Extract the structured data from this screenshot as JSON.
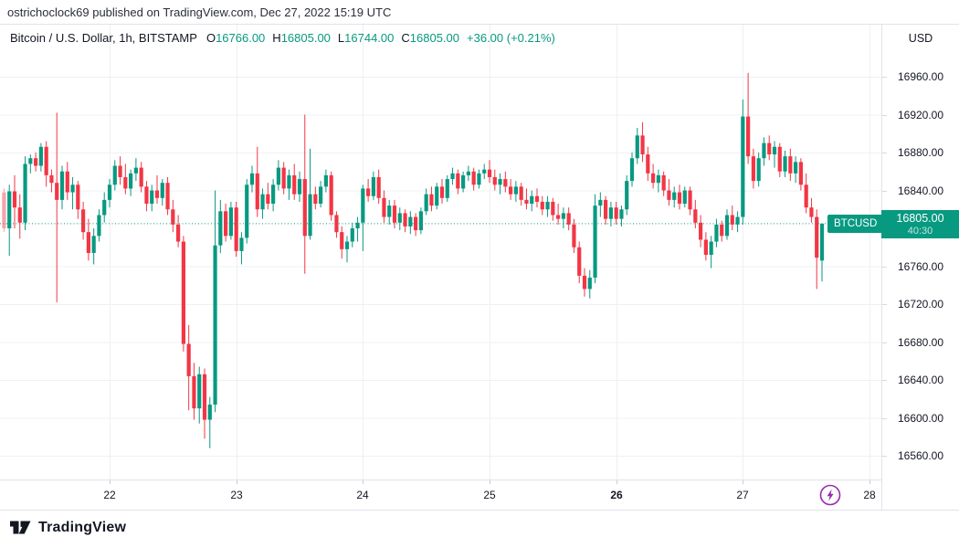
{
  "attribution": {
    "text": "ostrichoclock69 published on TradingView.com, Dec 27, 2022 15:19 UTC"
  },
  "header": {
    "symbol": "Bitcoin / U.S. Dollar, 1h, BITSTAMP",
    "ohlc_items": [
      {
        "label": "O",
        "value": "16766.00"
      },
      {
        "label": "H",
        "value": "16805.00"
      },
      {
        "label": "L",
        "value": "16744.00"
      },
      {
        "label": "C",
        "value": "16805.00"
      }
    ],
    "change": "+36.00 (+0.21%)",
    "currency_label": "USD"
  },
  "price_label": {
    "symbol": "BTCUSD",
    "price": "16805.00",
    "countdown": "40:30"
  },
  "footer": {
    "logo_text": "TradingView"
  },
  "colors": {
    "up": "#089981",
    "down": "#f23645",
    "badge": "#089981",
    "grid": "#eef0f4",
    "border": "#e0e3eb",
    "text": "#131722",
    "flash_purple": "#9c27b0",
    "logo_dark": "#131722"
  },
  "chart_data": {
    "type": "candlestick",
    "title": "Bitcoin / U.S. Dollar",
    "exchange": "BITSTAMP",
    "interval": "1h",
    "currency": "USD",
    "current_bar": {
      "open": 16766,
      "high": 16805,
      "low": 16744,
      "close": 16805,
      "change": 36.0,
      "change_pct": 0.21
    },
    "last_price": 16805,
    "countdown": "40:30",
    "y_axis": {
      "min": 16560,
      "max": 16960,
      "tick_step": 40,
      "ticks": [
        16960,
        16920,
        16880,
        16840,
        16760,
        16720,
        16680,
        16640,
        16600,
        16560
      ]
    },
    "x_axis": {
      "labels": [
        {
          "text": "22",
          "bold": false
        },
        {
          "text": "23",
          "bold": false
        },
        {
          "text": "24",
          "bold": false
        },
        {
          "text": "25",
          "bold": false
        },
        {
          "text": "26",
          "bold": true
        },
        {
          "text": "27",
          "bold": false
        },
        {
          "text": "28",
          "bold": false
        }
      ]
    },
    "candles": [
      [
        16838,
        16842,
        16796,
        16800
      ],
      [
        16800,
        16846,
        16771,
        16839
      ],
      [
        16839,
        16856,
        16800,
        16822
      ],
      [
        16822,
        16836,
        16789,
        16806
      ],
      [
        16806,
        16876,
        16798,
        16868
      ],
      [
        16868,
        16878,
        16858,
        16874
      ],
      [
        16874,
        16880,
        16860,
        16866
      ],
      [
        16866,
        16890,
        16860,
        16886
      ],
      [
        16886,
        16892,
        16844,
        16856
      ],
      [
        16856,
        16862,
        16838,
        16848
      ],
      [
        16848,
        16922,
        16722,
        16830
      ],
      [
        16830,
        16866,
        16820,
        16860
      ],
      [
        16860,
        16870,
        16830,
        16838
      ],
      [
        16838,
        16854,
        16820,
        16846
      ],
      [
        16846,
        16850,
        16810,
        16820
      ],
      [
        16820,
        16828,
        16788,
        16796
      ],
      [
        16796,
        16810,
        16766,
        16774
      ],
      [
        16774,
        16800,
        16762,
        16792
      ],
      [
        16792,
        16820,
        16786,
        16814
      ],
      [
        16814,
        16838,
        16806,
        16830
      ],
      [
        16830,
        16852,
        16822,
        16846
      ],
      [
        16846,
        16872,
        16840,
        16866
      ],
      [
        16866,
        16876,
        16846,
        16854
      ],
      [
        16854,
        16868,
        16836,
        16842
      ],
      [
        16842,
        16862,
        16834,
        16858
      ],
      [
        16858,
        16874,
        16850,
        16864
      ],
      [
        16864,
        16870,
        16838,
        16844
      ],
      [
        16844,
        16850,
        16818,
        16826
      ],
      [
        16826,
        16846,
        16818,
        16840
      ],
      [
        16840,
        16856,
        16826,
        16832
      ],
      [
        16832,
        16852,
        16824,
        16848
      ],
      [
        16848,
        16854,
        16814,
        16820
      ],
      [
        16820,
        16830,
        16796,
        16804
      ],
      [
        16804,
        16814,
        16780,
        16786
      ],
      [
        16786,
        16792,
        16670,
        16678
      ],
      [
        16678,
        16698,
        16608,
        16644
      ],
      [
        16644,
        16658,
        16598,
        16610
      ],
      [
        16610,
        16654,
        16594,
        16646
      ],
      [
        16646,
        16652,
        16578,
        16598
      ],
      [
        16598,
        16622,
        16568,
        16614
      ],
      [
        16614,
        16840,
        16606,
        16782
      ],
      [
        16782,
        16830,
        16774,
        16818
      ],
      [
        16818,
        16826,
        16786,
        16792
      ],
      [
        16792,
        16828,
        16788,
        16822
      ],
      [
        16822,
        16828,
        16770,
        16776
      ],
      [
        16776,
        16796,
        16762,
        16790
      ],
      [
        16790,
        16852,
        16784,
        16846
      ],
      [
        16846,
        16866,
        16838,
        16858
      ],
      [
        16858,
        16886,
        16812,
        16820
      ],
      [
        16820,
        16842,
        16810,
        16836
      ],
      [
        16836,
        16848,
        16820,
        16826
      ],
      [
        16826,
        16852,
        16818,
        16846
      ],
      [
        16846,
        16872,
        16840,
        16864
      ],
      [
        16864,
        16870,
        16836,
        16842
      ],
      [
        16842,
        16862,
        16830,
        16856
      ],
      [
        16856,
        16868,
        16830,
        16836
      ],
      [
        16836,
        16860,
        16828,
        16852
      ],
      [
        16852,
        16920,
        16752,
        16792
      ],
      [
        16792,
        16884,
        16788,
        16836
      ],
      [
        16836,
        16844,
        16820,
        16826
      ],
      [
        16826,
        16850,
        16822,
        16844
      ],
      [
        16844,
        16862,
        16838,
        16856
      ],
      [
        16856,
        16860,
        16808,
        16814
      ],
      [
        16814,
        16818,
        16790,
        16796
      ],
      [
        16796,
        16802,
        16768,
        16778
      ],
      [
        16778,
        16792,
        16764,
        16786
      ],
      [
        16786,
        16806,
        16780,
        16800
      ],
      [
        16800,
        16812,
        16786,
        16806
      ],
      [
        16806,
        16846,
        16776,
        16842
      ],
      [
        16842,
        16852,
        16828,
        16834
      ],
      [
        16834,
        16860,
        16830,
        16854
      ],
      [
        16854,
        16862,
        16826,
        16832
      ],
      [
        16832,
        16840,
        16806,
        16812
      ],
      [
        16812,
        16830,
        16804,
        16824
      ],
      [
        16824,
        16830,
        16800,
        16806
      ],
      [
        16806,
        16822,
        16798,
        16816
      ],
      [
        16816,
        16820,
        16796,
        16802
      ],
      [
        16802,
        16818,
        16794,
        16812
      ],
      [
        16812,
        16816,
        16792,
        16798
      ],
      [
        16798,
        16822,
        16794,
        16818
      ],
      [
        16818,
        16842,
        16814,
        16836
      ],
      [
        16836,
        16844,
        16818,
        16824
      ],
      [
        16824,
        16848,
        16820,
        16844
      ],
      [
        16844,
        16852,
        16826,
        16832
      ],
      [
        16832,
        16856,
        16828,
        16852
      ],
      [
        16852,
        16864,
        16846,
        16858
      ],
      [
        16858,
        16862,
        16836,
        16842
      ],
      [
        16842,
        16860,
        16838,
        16856
      ],
      [
        16856,
        16866,
        16850,
        16860
      ],
      [
        16860,
        16864,
        16840,
        16846
      ],
      [
        16846,
        16862,
        16842,
        16858
      ],
      [
        16858,
        16868,
        16852,
        16862
      ],
      [
        16862,
        16872,
        16848,
        16854
      ],
      [
        16854,
        16862,
        16840,
        16846
      ],
      [
        16846,
        16858,
        16836,
        16852
      ],
      [
        16852,
        16860,
        16838,
        16844
      ],
      [
        16844,
        16852,
        16830,
        16836
      ],
      [
        16836,
        16850,
        16828,
        16844
      ],
      [
        16844,
        16848,
        16824,
        16830
      ],
      [
        16830,
        16842,
        16820,
        16826
      ],
      [
        16826,
        16840,
        16818,
        16834
      ],
      [
        16834,
        16842,
        16822,
        16828
      ],
      [
        16828,
        16834,
        16814,
        16820
      ],
      [
        16820,
        16834,
        16812,
        16828
      ],
      [
        16828,
        16832,
        16808,
        16814
      ],
      [
        16814,
        16826,
        16804,
        16810
      ],
      [
        16810,
        16822,
        16800,
        16816
      ],
      [
        16816,
        16822,
        16798,
        16804
      ],
      [
        16804,
        16810,
        16774,
        16780
      ],
      [
        16780,
        16786,
        16742,
        16750
      ],
      [
        16750,
        16758,
        16728,
        16736
      ],
      [
        16736,
        16756,
        16726,
        16748
      ],
      [
        16748,
        16836,
        16742,
        16824
      ],
      [
        16824,
        16838,
        16812,
        16830
      ],
      [
        16830,
        16834,
        16804,
        16810
      ],
      [
        16810,
        16828,
        16802,
        16822
      ],
      [
        16822,
        16828,
        16804,
        16810
      ],
      [
        16810,
        16824,
        16802,
        16820
      ],
      [
        16820,
        16856,
        16814,
        16850
      ],
      [
        16850,
        16880,
        16844,
        16874
      ],
      [
        16874,
        16906,
        16868,
        16898
      ],
      [
        16898,
        16912,
        16870,
        16878
      ],
      [
        16878,
        16886,
        16850,
        16858
      ],
      [
        16858,
        16868,
        16842,
        16848
      ],
      [
        16848,
        16862,
        16838,
        16856
      ],
      [
        16856,
        16860,
        16834,
        16840
      ],
      [
        16840,
        16852,
        16824,
        16830
      ],
      [
        16830,
        16844,
        16822,
        16838
      ],
      [
        16838,
        16846,
        16820,
        16826
      ],
      [
        16826,
        16844,
        16822,
        16840
      ],
      [
        16840,
        16844,
        16814,
        16820
      ],
      [
        16820,
        16830,
        16800,
        16806
      ],
      [
        16806,
        16814,
        16780,
        16788
      ],
      [
        16788,
        16796,
        16766,
        16772
      ],
      [
        16772,
        16792,
        16758,
        16786
      ],
      [
        16786,
        16810,
        16780,
        16804
      ],
      [
        16804,
        16808,
        16786,
        16792
      ],
      [
        16792,
        16820,
        16788,
        16814
      ],
      [
        16814,
        16824,
        16798,
        16804
      ],
      [
        16804,
        16818,
        16796,
        16812
      ],
      [
        16812,
        16936,
        16804,
        16918
      ],
      [
        16918,
        16964,
        16868,
        16876
      ],
      [
        16876,
        16884,
        16842,
        16850
      ],
      [
        16850,
        16880,
        16844,
        16874
      ],
      [
        16874,
        16896,
        16866,
        16890
      ],
      [
        16890,
        16898,
        16872,
        16878
      ],
      [
        16878,
        16892,
        16864,
        16886
      ],
      [
        16886,
        16890,
        16854,
        16860
      ],
      [
        16860,
        16882,
        16854,
        16876
      ],
      [
        16876,
        16884,
        16850,
        16858
      ],
      [
        16858,
        16876,
        16848,
        16870
      ],
      [
        16870,
        16874,
        16840,
        16846
      ],
      [
        16846,
        16858,
        16816,
        16822
      ],
      [
        16822,
        16832,
        16806,
        16812
      ],
      [
        16812,
        16820,
        16736,
        16769
      ],
      [
        16766,
        16805,
        16744,
        16805
      ]
    ]
  }
}
